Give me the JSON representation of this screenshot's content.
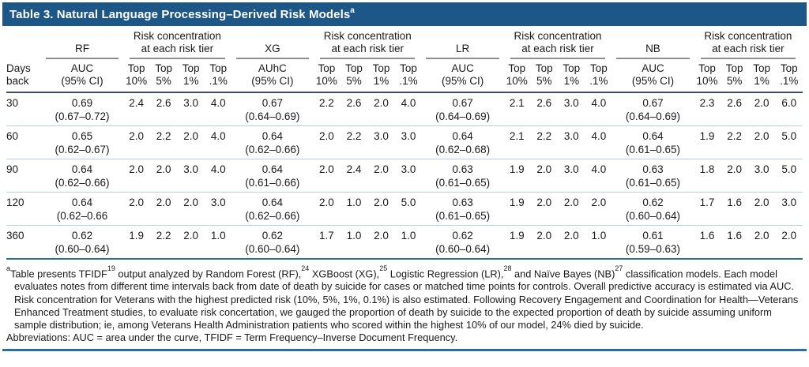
{
  "title": {
    "segments": [
      {
        "t": "Table 3. Natural Language Processing–Derived Risk Models"
      },
      {
        "t": "a",
        "sup": true
      }
    ]
  },
  "table": {
    "header": {
      "days_line1": "Days",
      "days_line2": "back",
      "risk_line1": "Risk concentration",
      "risk_line2": "at each risk tier",
      "top_label": "Top",
      "tier_labels": [
        "10%",
        "5%",
        "1%",
        ".1%"
      ],
      "models": [
        {
          "name": "RF",
          "stat_line1": "AUC",
          "stat_line2": "(95% CI)"
        },
        {
          "name": "XG",
          "stat_line1": "AUhC",
          "stat_line2": "(95% CI)"
        },
        {
          "name": "LR",
          "stat_line1": "AUC",
          "stat_line2": "(95% CI)"
        },
        {
          "name": "NB",
          "stat_line1": "AUC",
          "stat_line2": "(95% CI)"
        }
      ]
    },
    "rows": [
      {
        "days": "30",
        "models": [
          {
            "auc": "0.69",
            "ci": "(0.67–0.72)",
            "tiers": [
              "2.4",
              "2.6",
              "3.0",
              "4.0"
            ]
          },
          {
            "auc": "0.67",
            "ci": "(0.64–0.69)",
            "tiers": [
              "2.2",
              "2.6",
              "2.0",
              "4.0"
            ]
          },
          {
            "auc": "0.67",
            "ci": "(0.64–0.69)",
            "tiers": [
              "2.1",
              "2.6",
              "3.0",
              "4.0"
            ]
          },
          {
            "auc": "0.67",
            "ci": "(0.64–0.69)",
            "tiers": [
              "2.3",
              "2.6",
              "2.0",
              "6.0"
            ]
          }
        ]
      },
      {
        "days": "60",
        "models": [
          {
            "auc": "0.65",
            "ci": "(0.62–0.67)",
            "tiers": [
              "2.0",
              "2.2",
              "2.0",
              "4.0"
            ]
          },
          {
            "auc": "0.64",
            "ci": "(0.62–0.66)",
            "tiers": [
              "2.0",
              "2.2",
              "3.0",
              "3.0"
            ]
          },
          {
            "auc": "0.64",
            "ci": "(0.62–0.68)",
            "tiers": [
              "2.1",
              "2.2",
              "3.0",
              "4.0"
            ]
          },
          {
            "auc": "0.64",
            "ci": "(0.61–0.65)",
            "tiers": [
              "1.9",
              "2.2",
              "2.0",
              "5.0"
            ]
          }
        ]
      },
      {
        "days": "90",
        "models": [
          {
            "auc": "0.64",
            "ci": "(0.62–0.66)",
            "tiers": [
              "2.0",
              "2.0",
              "3.0",
              "4.0"
            ]
          },
          {
            "auc": "0.64",
            "ci": "(0.61–0.66)",
            "tiers": [
              "2.0",
              "2.4",
              "2.0",
              "3.0"
            ]
          },
          {
            "auc": "0.63",
            "ci": "(0.61–0.65)",
            "tiers": [
              "1.9",
              "2.0",
              "3.0",
              "4.0"
            ]
          },
          {
            "auc": "0.63",
            "ci": "(0.61–0.65)",
            "tiers": [
              "1.8",
              "2.0",
              "3.0",
              "5.0"
            ]
          }
        ]
      },
      {
        "days": "120",
        "models": [
          {
            "auc": "0.64",
            "ci": "(0.62–0.66",
            "tiers": [
              "2.0",
              "2.0",
              "2.0",
              "3.0"
            ]
          },
          {
            "auc": "0.64",
            "ci": "(0.62–0.66)",
            "tiers": [
              "2.0",
              "1.0",
              "2.0",
              "5.0"
            ]
          },
          {
            "auc": "0.63",
            "ci": "(0.61–0.65)",
            "tiers": [
              "1.9",
              "2.0",
              "2.0",
              "2.0"
            ]
          },
          {
            "auc": "0.62",
            "ci": "(0.60–0.64)",
            "tiers": [
              "1.7",
              "1.6",
              "2.0",
              "3.0"
            ]
          }
        ]
      },
      {
        "days": "360",
        "models": [
          {
            "auc": "0.62",
            "ci": "(0.60–0.64)",
            "tiers": [
              "1.9",
              "2.2",
              "2.0",
              "1.0"
            ]
          },
          {
            "auc": "0.62",
            "ci": "(0.60–0.64)",
            "tiers": [
              "1.7",
              "1.0",
              "2.0",
              "1.0"
            ]
          },
          {
            "auc": "0.62",
            "ci": "(0.60–0.64)",
            "tiers": [
              "1.9",
              "2.0",
              "2.0",
              "1.0"
            ]
          },
          {
            "auc": "0.61",
            "ci": "(0.59–0.63)",
            "tiers": [
              "1.6",
              "1.6",
              "2.0",
              "2.0"
            ]
          }
        ]
      }
    ]
  },
  "footnote": {
    "para_segments": [
      {
        "t": "a",
        "sup": true
      },
      {
        "t": "Table presents TFIDF"
      },
      {
        "t": "19",
        "sup": true
      },
      {
        "t": " output analyzed by Random Forest (RF),"
      },
      {
        "t": "24",
        "sup": true
      },
      {
        "t": " XGBoost (XG),"
      },
      {
        "t": "25",
        "sup": true
      },
      {
        "t": " Logistic Regression (LR),"
      },
      {
        "t": "28",
        "sup": true
      },
      {
        "t": " and Naïve Bayes (NB)"
      },
      {
        "t": "27",
        "sup": true
      },
      {
        "t": " classification models. Each model evaluates notes from different time intervals back from date of death by suicide for cases or matched time points for controls. Overall predictive accuracy is estimated via AUC. Risk concentration for Veterans with the highest predicted risk (10%, 5%, 1%, 0.1%) is also estimated. Following Recovery Engagement and Coordination for Health—Veterans Enhanced Treatment studies, to evaluate risk concertation, we gauged the proportion of death by suicide to the expected proportion of death by suicide assuming uniform sample distribution; ie, among Veterans Health Administration patients who scored within the highest 10% of our model, 24% died by suicide."
      }
    ],
    "abbreviations": "Abbreviations: AUC = area under the curve, TFIDF = Term Frequency–Inverse Document Frequency."
  },
  "colors": {
    "title_bar": "#1d5787",
    "heavy_header_rule": "#3e4d60",
    "gray_group_rule": "#8f8f8f",
    "row_separator": "#b3d0e7",
    "blue_rule": "#2e6da4"
  }
}
